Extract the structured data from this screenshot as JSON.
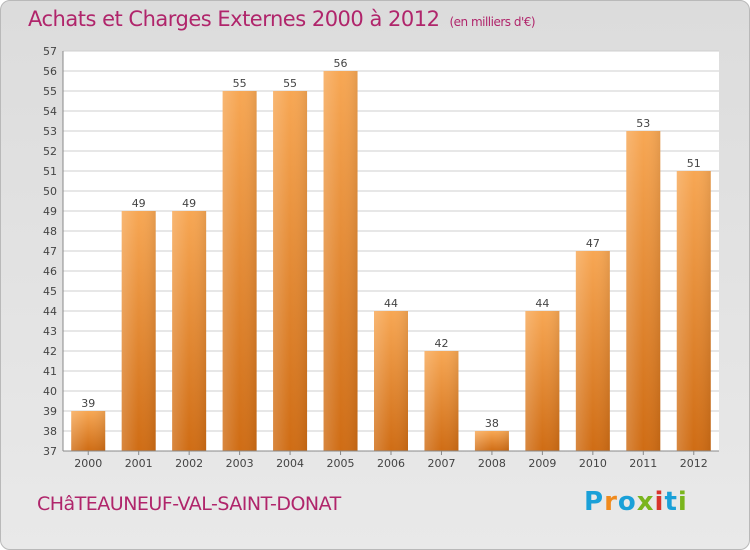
{
  "colors": {
    "title": "#b0256b",
    "bar_top": "#f7a754",
    "bar_bottom": "#cf6c14",
    "grid": "#cfcfcf",
    "plot_bg": "#ffffff",
    "logo": [
      "#1aa0d8",
      "#f08a1c",
      "#1aa0d8",
      "#7ab51d",
      "#d8342c",
      "#1aa0d8",
      "#7ab51d"
    ]
  },
  "header": {
    "title": "Achats et Charges Externes 2000 à 2012",
    "subtitle": "(en milliers d'€)"
  },
  "footer": {
    "city": "CHâTEAUNEUF-VAL-SAINT-DONAT",
    "logo_letters": [
      "P",
      "r",
      "o",
      "x",
      "i",
      "t",
      "i"
    ]
  },
  "chart_data": {
    "type": "bar",
    "title": "Achats et Charges Externes 2000 à 2012",
    "subtitle": "(en milliers d'€)",
    "xlabel": "",
    "ylabel": "",
    "categories": [
      "2000",
      "2001",
      "2002",
      "2003",
      "2004",
      "2005",
      "2006",
      "2007",
      "2008",
      "2009",
      "2010",
      "2011",
      "2012"
    ],
    "values": [
      39,
      49,
      49,
      55,
      55,
      56,
      44,
      42,
      38,
      44,
      47,
      53,
      51
    ],
    "ylim": [
      37,
      57
    ],
    "yticks": [
      37,
      38,
      39,
      40,
      41,
      42,
      43,
      44,
      45,
      46,
      47,
      48,
      49,
      50,
      51,
      52,
      53,
      54,
      55,
      56,
      57
    ],
    "grid": true,
    "legend": "none"
  }
}
